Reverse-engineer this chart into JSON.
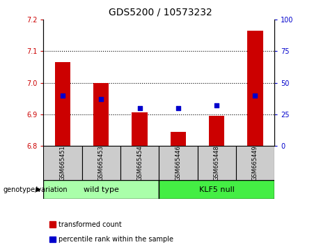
{
  "title": "GDS5200 / 10573232",
  "samples": [
    "GSM665451",
    "GSM665453",
    "GSM665454",
    "GSM665446",
    "GSM665448",
    "GSM665449"
  ],
  "bar_tops": [
    7.065,
    7.0,
    6.905,
    6.845,
    6.895,
    7.165
  ],
  "bar_bottom": 6.8,
  "blue_percentiles": [
    40,
    37,
    30,
    30,
    32,
    40
  ],
  "ylim": [
    6.8,
    7.2
  ],
  "yticks_left": [
    6.8,
    6.9,
    7.0,
    7.1,
    7.2
  ],
  "yticks_right": [
    0,
    25,
    50,
    75,
    100
  ],
  "bar_color": "#cc0000",
  "blue_color": "#0000cc",
  "wild_type_label": "wild type",
  "klf5_null_label": "KLF5 null",
  "wild_type_color": "#aaffaa",
  "klf5_null_color": "#44ee44",
  "genotype_label": "genotype/variation",
  "legend_bar_label": "transformed count",
  "legend_blue_label": "percentile rank within the sample",
  "left_axis_color": "#cc0000",
  "right_axis_color": "#0000cc",
  "sample_box_color": "#cccccc",
  "bar_width": 0.4,
  "title_fontsize": 10,
  "tick_fontsize": 7,
  "sample_fontsize": 6,
  "geno_fontsize": 8,
  "legend_fontsize": 7,
  "geno_label_fontsize": 7
}
